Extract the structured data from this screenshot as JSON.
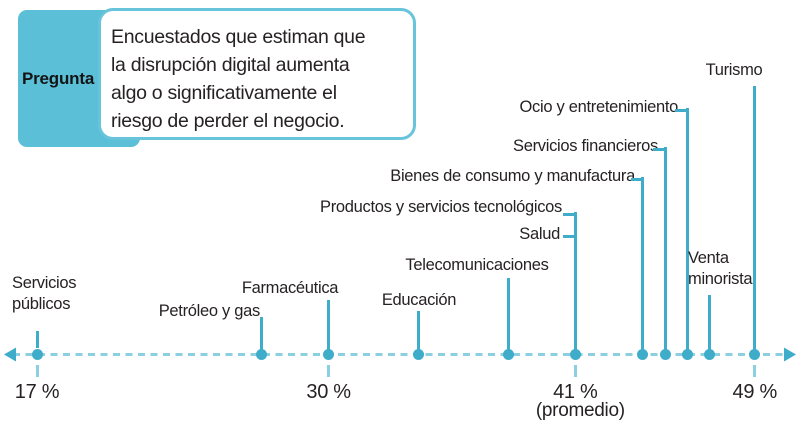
{
  "callout": {
    "tag": "Pregunta",
    "lines": [
      "Encuestados que estiman que",
      "la disrupción digital aumenta",
      "algo o significativamente el",
      "riesgo de perder el negocio."
    ]
  },
  "chart_data": {
    "type": "scatter",
    "title": "Encuestados que estiman que la disrupción digital aumenta algo o significativamente el riesgo de perder el negocio.",
    "unit": "%",
    "axis": {
      "min": 17,
      "max": 49,
      "orientation": "horizontal",
      "style": "dashed",
      "arrows": "both"
    },
    "points": [
      {
        "label": "Servicios públicos",
        "value": 17
      },
      {
        "label": "Petróleo y gas",
        "value": 27
      },
      {
        "label": "Farmacéutica",
        "value": 30
      },
      {
        "label": "Educación",
        "value": 34
      },
      {
        "label": "Telecomunicaciones",
        "value": 38
      },
      {
        "label": "Salud",
        "value": 41
      },
      {
        "label": "Productos y servicios tecnológicos",
        "value": 41
      },
      {
        "label": "Bienes de consumo y manufactura",
        "value": 44
      },
      {
        "label": "Servicios financieros",
        "value": 45
      },
      {
        "label": "Ocio y entretenimiento",
        "value": 46
      },
      {
        "label": "Venta minorista",
        "value": 47
      },
      {
        "label": "Turismo",
        "value": 49
      }
    ],
    "average": {
      "value": 41,
      "label": "(promedio)"
    },
    "ticks": [
      {
        "value": 17,
        "label": "17 %"
      },
      {
        "value": 30,
        "label": "30 %"
      },
      {
        "value": 41,
        "label": "41 %",
        "sublabel": "(promedio)"
      },
      {
        "value": 49,
        "label": "49 %"
      }
    ]
  },
  "colors": {
    "teal": "#3fadca",
    "light_teal": "#8bcfe0",
    "tag_fill": "#5bbfd7",
    "bubble_border": "#68c4da",
    "text": "#262223"
  }
}
